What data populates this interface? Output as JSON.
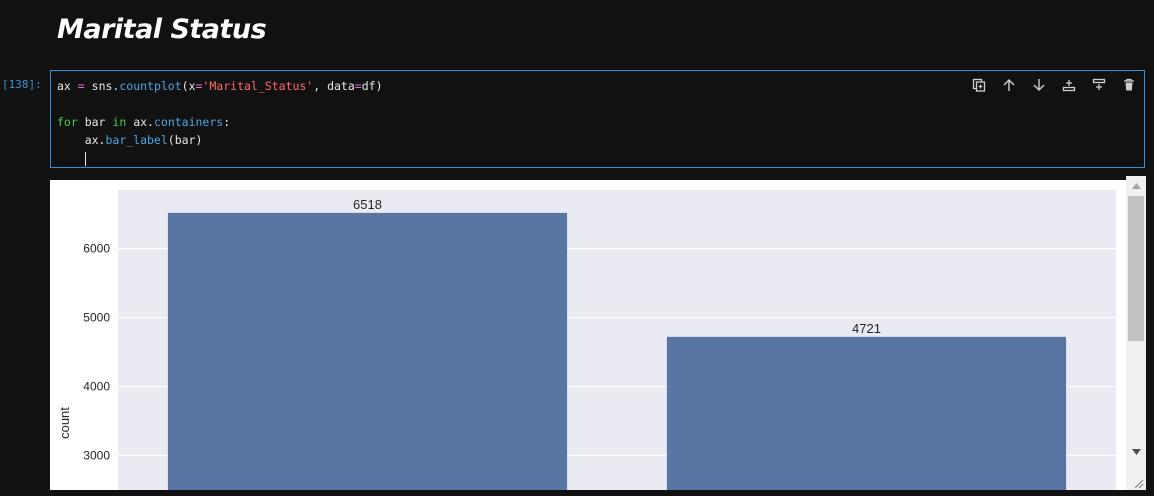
{
  "markdown": {
    "heading": "Marital Status"
  },
  "code_cell": {
    "prompt": "[138]:",
    "code": {
      "line1": {
        "a": "ax ",
        "b": "=",
        "c": " sns.",
        "d": "countplot",
        "e": "(x",
        "f": "=",
        "g": "'Marital_Status'",
        "h": ", data",
        "i": "=",
        "j": "df)"
      },
      "line3": {
        "a": "for",
        "b": " bar ",
        "c": "in",
        "d": " ax.",
        "e": "containers",
        "f": ":"
      },
      "line4": {
        "a": "    ax.",
        "b": "bar_label",
        "c": "(bar)"
      }
    },
    "toolbar": [
      "duplicate-cell-icon",
      "move-up-icon",
      "move-down-icon",
      "insert-above-icon",
      "insert-below-icon",
      "delete-icon"
    ]
  },
  "chart_data": {
    "type": "bar",
    "categories": [
      "",
      ""
    ],
    "values": [
      6518,
      4721
    ],
    "data_labels": [
      "6518",
      "4721"
    ],
    "ylabel": "count",
    "xlabel": "",
    "y_ticks": [
      "3000",
      "4000",
      "5000",
      "6000"
    ],
    "visible_ylim": [
      2500,
      6850
    ],
    "grid": true,
    "colors": {
      "bar": "#5975a4",
      "plot_bg": "#eaeaf2",
      "grid": "#ffffff"
    }
  }
}
